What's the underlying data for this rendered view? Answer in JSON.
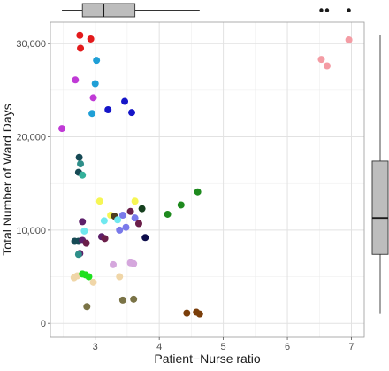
{
  "chart_data": {
    "type": "scatter",
    "xlabel": "Patient−Nurse ratio",
    "ylabel": "Total Number of Ward Days",
    "xlim": [
      2.3,
      7.2
    ],
    "ylim": [
      -1500,
      32300
    ],
    "x_ticks": [
      {
        "value": 3,
        "label": "3"
      },
      {
        "value": 4,
        "label": "4"
      },
      {
        "value": 5,
        "label": "5"
      },
      {
        "value": 6,
        "label": "6"
      },
      {
        "value": 7,
        "label": "7"
      }
    ],
    "y_ticks": [
      {
        "value": 0,
        "label": "0"
      },
      {
        "value": 10000,
        "label": "10,000"
      },
      {
        "value": 20000,
        "label": "20,000"
      },
      {
        "value": 30000,
        "label": "30,000"
      }
    ],
    "grid": true,
    "points": [
      {
        "x": 2.76,
        "y": 30900,
        "color": "#e31a1c"
      },
      {
        "x": 2.93,
        "y": 30500,
        "color": "#e31a1c"
      },
      {
        "x": 2.77,
        "y": 29500,
        "color": "#e31a1c"
      },
      {
        "x": 3.02,
        "y": 28200,
        "color": "#1f9fd6"
      },
      {
        "x": 6.96,
        "y": 30400,
        "color": "#f49ca4"
      },
      {
        "x": 6.53,
        "y": 28300,
        "color": "#f49ca4"
      },
      {
        "x": 6.62,
        "y": 27600,
        "color": "#f49ca4"
      },
      {
        "x": 2.69,
        "y": 26100,
        "color": "#c03ad6"
      },
      {
        "x": 3.0,
        "y": 25700,
        "color": "#1f9fd6"
      },
      {
        "x": 3.46,
        "y": 23800,
        "color": "#1515c8"
      },
      {
        "x": 2.97,
        "y": 24200,
        "color": "#c03ad6"
      },
      {
        "x": 3.2,
        "y": 22900,
        "color": "#1515c8"
      },
      {
        "x": 3.57,
        "y": 22600,
        "color": "#1515c8"
      },
      {
        "x": 2.95,
        "y": 22500,
        "color": "#1f9fd6"
      },
      {
        "x": 2.48,
        "y": 20900,
        "color": "#c03ad6"
      },
      {
        "x": 2.75,
        "y": 17800,
        "color": "#174a55"
      },
      {
        "x": 2.77,
        "y": 17100,
        "color": "#2f8f8a"
      },
      {
        "x": 2.74,
        "y": 16200,
        "color": "#174a55"
      },
      {
        "x": 2.8,
        "y": 15900,
        "color": "#34b09a"
      },
      {
        "x": 4.6,
        "y": 14100,
        "color": "#1e8a1e"
      },
      {
        "x": 3.07,
        "y": 13100,
        "color": "#f6f655"
      },
      {
        "x": 3.62,
        "y": 13100,
        "color": "#f6f655"
      },
      {
        "x": 4.34,
        "y": 12700,
        "color": "#1e8a1e"
      },
      {
        "x": 3.73,
        "y": 12300,
        "color": "#16401f"
      },
      {
        "x": 3.55,
        "y": 12000,
        "color": "#6b1f4a"
      },
      {
        "x": 4.13,
        "y": 11700,
        "color": "#1e8a1e"
      },
      {
        "x": 3.24,
        "y": 11600,
        "color": "#f6f655"
      },
      {
        "x": 3.3,
        "y": 11500,
        "color": "#4d3d1e"
      },
      {
        "x": 3.43,
        "y": 11600,
        "color": "#7979ea"
      },
      {
        "x": 3.62,
        "y": 11300,
        "color": "#7979ea"
      },
      {
        "x": 3.14,
        "y": 11000,
        "color": "#6fe8ef"
      },
      {
        "x": 3.35,
        "y": 11100,
        "color": "#6fe8ef"
      },
      {
        "x": 2.8,
        "y": 10900,
        "color": "#5d1f6a"
      },
      {
        "x": 3.68,
        "y": 10700,
        "color": "#6b1f4a"
      },
      {
        "x": 3.48,
        "y": 10300,
        "color": "#7979ea"
      },
      {
        "x": 3.38,
        "y": 10000,
        "color": "#7979ea"
      },
      {
        "x": 2.83,
        "y": 9900,
        "color": "#6fe8ef"
      },
      {
        "x": 3.1,
        "y": 9300,
        "color": "#5d1f6a"
      },
      {
        "x": 3.15,
        "y": 9100,
        "color": "#6b1f4a"
      },
      {
        "x": 3.78,
        "y": 9200,
        "color": "#0c0c4a"
      },
      {
        "x": 2.68,
        "y": 8800,
        "color": "#174a55"
      },
      {
        "x": 2.74,
        "y": 8800,
        "color": "#174a55"
      },
      {
        "x": 2.8,
        "y": 8900,
        "color": "#5d1f6a"
      },
      {
        "x": 2.86,
        "y": 8600,
        "color": "#6b1f4a"
      },
      {
        "x": 2.76,
        "y": 7500,
        "color": "#5d1f6a"
      },
      {
        "x": 2.74,
        "y": 7400,
        "color": "#2f8f8a"
      },
      {
        "x": 3.55,
        "y": 6500,
        "color": "#d5a7dd"
      },
      {
        "x": 3.6,
        "y": 6400,
        "color": "#d5a7dd"
      },
      {
        "x": 3.28,
        "y": 6300,
        "color": "#d5a7dd"
      },
      {
        "x": 2.72,
        "y": 5100,
        "color": "#f0d6a8"
      },
      {
        "x": 2.8,
        "y": 5300,
        "color": "#1ee01e"
      },
      {
        "x": 2.85,
        "y": 5200,
        "color": "#1ee01e"
      },
      {
        "x": 2.9,
        "y": 5000,
        "color": "#1ee01e"
      },
      {
        "x": 2.67,
        "y": 4900,
        "color": "#f0d6a8"
      },
      {
        "x": 3.38,
        "y": 5000,
        "color": "#f0d6a8"
      },
      {
        "x": 2.97,
        "y": 4400,
        "color": "#f0d6a8"
      },
      {
        "x": 3.43,
        "y": 2500,
        "color": "#7a7346"
      },
      {
        "x": 3.6,
        "y": 2600,
        "color": "#7a7346"
      },
      {
        "x": 2.87,
        "y": 1800,
        "color": "#7a7346"
      },
      {
        "x": 4.43,
        "y": 1100,
        "color": "#7a3e0a"
      },
      {
        "x": 4.58,
        "y": 1200,
        "color": "#7a3e0a"
      },
      {
        "x": 4.63,
        "y": 1000,
        "color": "#7a3e0a"
      }
    ],
    "x_boxplot": {
      "min": 2.48,
      "q1": 2.8,
      "median": 3.13,
      "q3": 3.62,
      "max": 4.63,
      "outliers": [
        6.53,
        6.62,
        6.96
      ]
    },
    "y_boxplot": {
      "min": 1000,
      "q1": 7400,
      "median": 11300,
      "q3": 17400,
      "max": 30900,
      "outliers": []
    },
    "colors": {
      "panel": "#ffffff",
      "grid": "#ebebeb",
      "axis_line": "#555555",
      "box_fill": "#bdbdbd",
      "text": "#1a1a1a"
    }
  }
}
